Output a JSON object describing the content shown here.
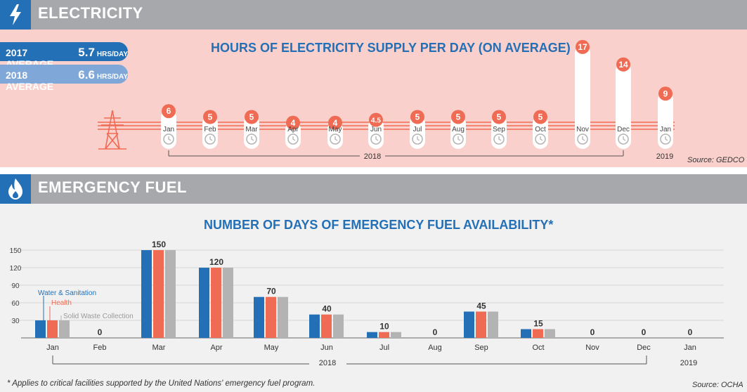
{
  "electricity": {
    "header": "ELECTRICITY",
    "title": "HOURS OF ELECTRICITY SUPPLY PER DAY (ON AVERAGE)",
    "avg_2017": {
      "label": "2017 AVERAGE",
      "value": "5.7",
      "unit": "HRS/DAY"
    },
    "avg_2018": {
      "label": "2018 AVERAGE",
      "value": "6.6",
      "unit": "HRS/DAY"
    },
    "source": "Source: GEDCO",
    "year_2018": "2018",
    "year_2019": "2019"
  },
  "fuel": {
    "header": "EMERGENCY FUEL",
    "title": "NUMBER OF DAYS OF EMERGENCY FUEL AVAILABILITY*",
    "footnote": "* Applies to critical facilities supported by the United Nations' emergency fuel program.",
    "source": "Source: OCHA",
    "year_2018": "2018",
    "year_2019": "2019"
  },
  "colors": {
    "blue": "#2470b7",
    "orange": "#ef6b53",
    "gray": "#b3b3b3",
    "pink_bg": "#f9d0cb",
    "light_blue": "#7fa8d9"
  },
  "chart_data": [
    {
      "type": "bar",
      "title": "HOURS OF ELECTRICITY SUPPLY PER DAY (ON AVERAGE)",
      "categories": [
        "Jan",
        "Feb",
        "Mar",
        "Apr",
        "May",
        "Jun",
        "Jul",
        "Aug",
        "Sep",
        "Oct",
        "Nov",
        "Dec",
        "Jan"
      ],
      "values": [
        6,
        5,
        5,
        4,
        4,
        4.5,
        5,
        5,
        5,
        5,
        17,
        14,
        9
      ],
      "value_labels": [
        "6",
        "5",
        "5",
        "4",
        "4",
        "4.5",
        "5",
        "5",
        "5",
        "5",
        "17",
        "14",
        "9"
      ],
      "years": [
        "2018",
        "2019"
      ]
    },
    {
      "type": "bar",
      "title": "NUMBER OF DAYS OF EMERGENCY FUEL AVAILABILITY*",
      "categories": [
        "Jan",
        "Feb",
        "Mar",
        "Apr",
        "May",
        "Jun",
        "Jul",
        "Aug",
        "Sep",
        "Oct",
        "Nov",
        "Dec",
        "Jan"
      ],
      "series": [
        {
          "name": "Water & Sanitation",
          "color": "#2470b7",
          "values": [
            30,
            0,
            150,
            120,
            70,
            40,
            10,
            0,
            45,
            15,
            0,
            0,
            0
          ]
        },
        {
          "name": "Health",
          "color": "#ef6b53",
          "values": [
            30,
            0,
            150,
            120,
            70,
            40,
            10,
            0,
            45,
            15,
            0,
            0,
            0
          ]
        },
        {
          "name": "Solid Waste Collection",
          "color": "#b3b3b3",
          "values": [
            30,
            0,
            150,
            120,
            70,
            40,
            10,
            0,
            45,
            15,
            0,
            0,
            0
          ]
        }
      ],
      "value_labels": [
        "",
        "0",
        "150",
        "120",
        "70",
        "40",
        "10",
        "0",
        "45",
        "15",
        "0",
        "0",
        "0"
      ],
      "y_ticks": [
        30,
        60,
        90,
        120,
        150
      ],
      "ylim": [
        0,
        155
      ],
      "years": [
        "2018",
        "2019"
      ]
    }
  ]
}
